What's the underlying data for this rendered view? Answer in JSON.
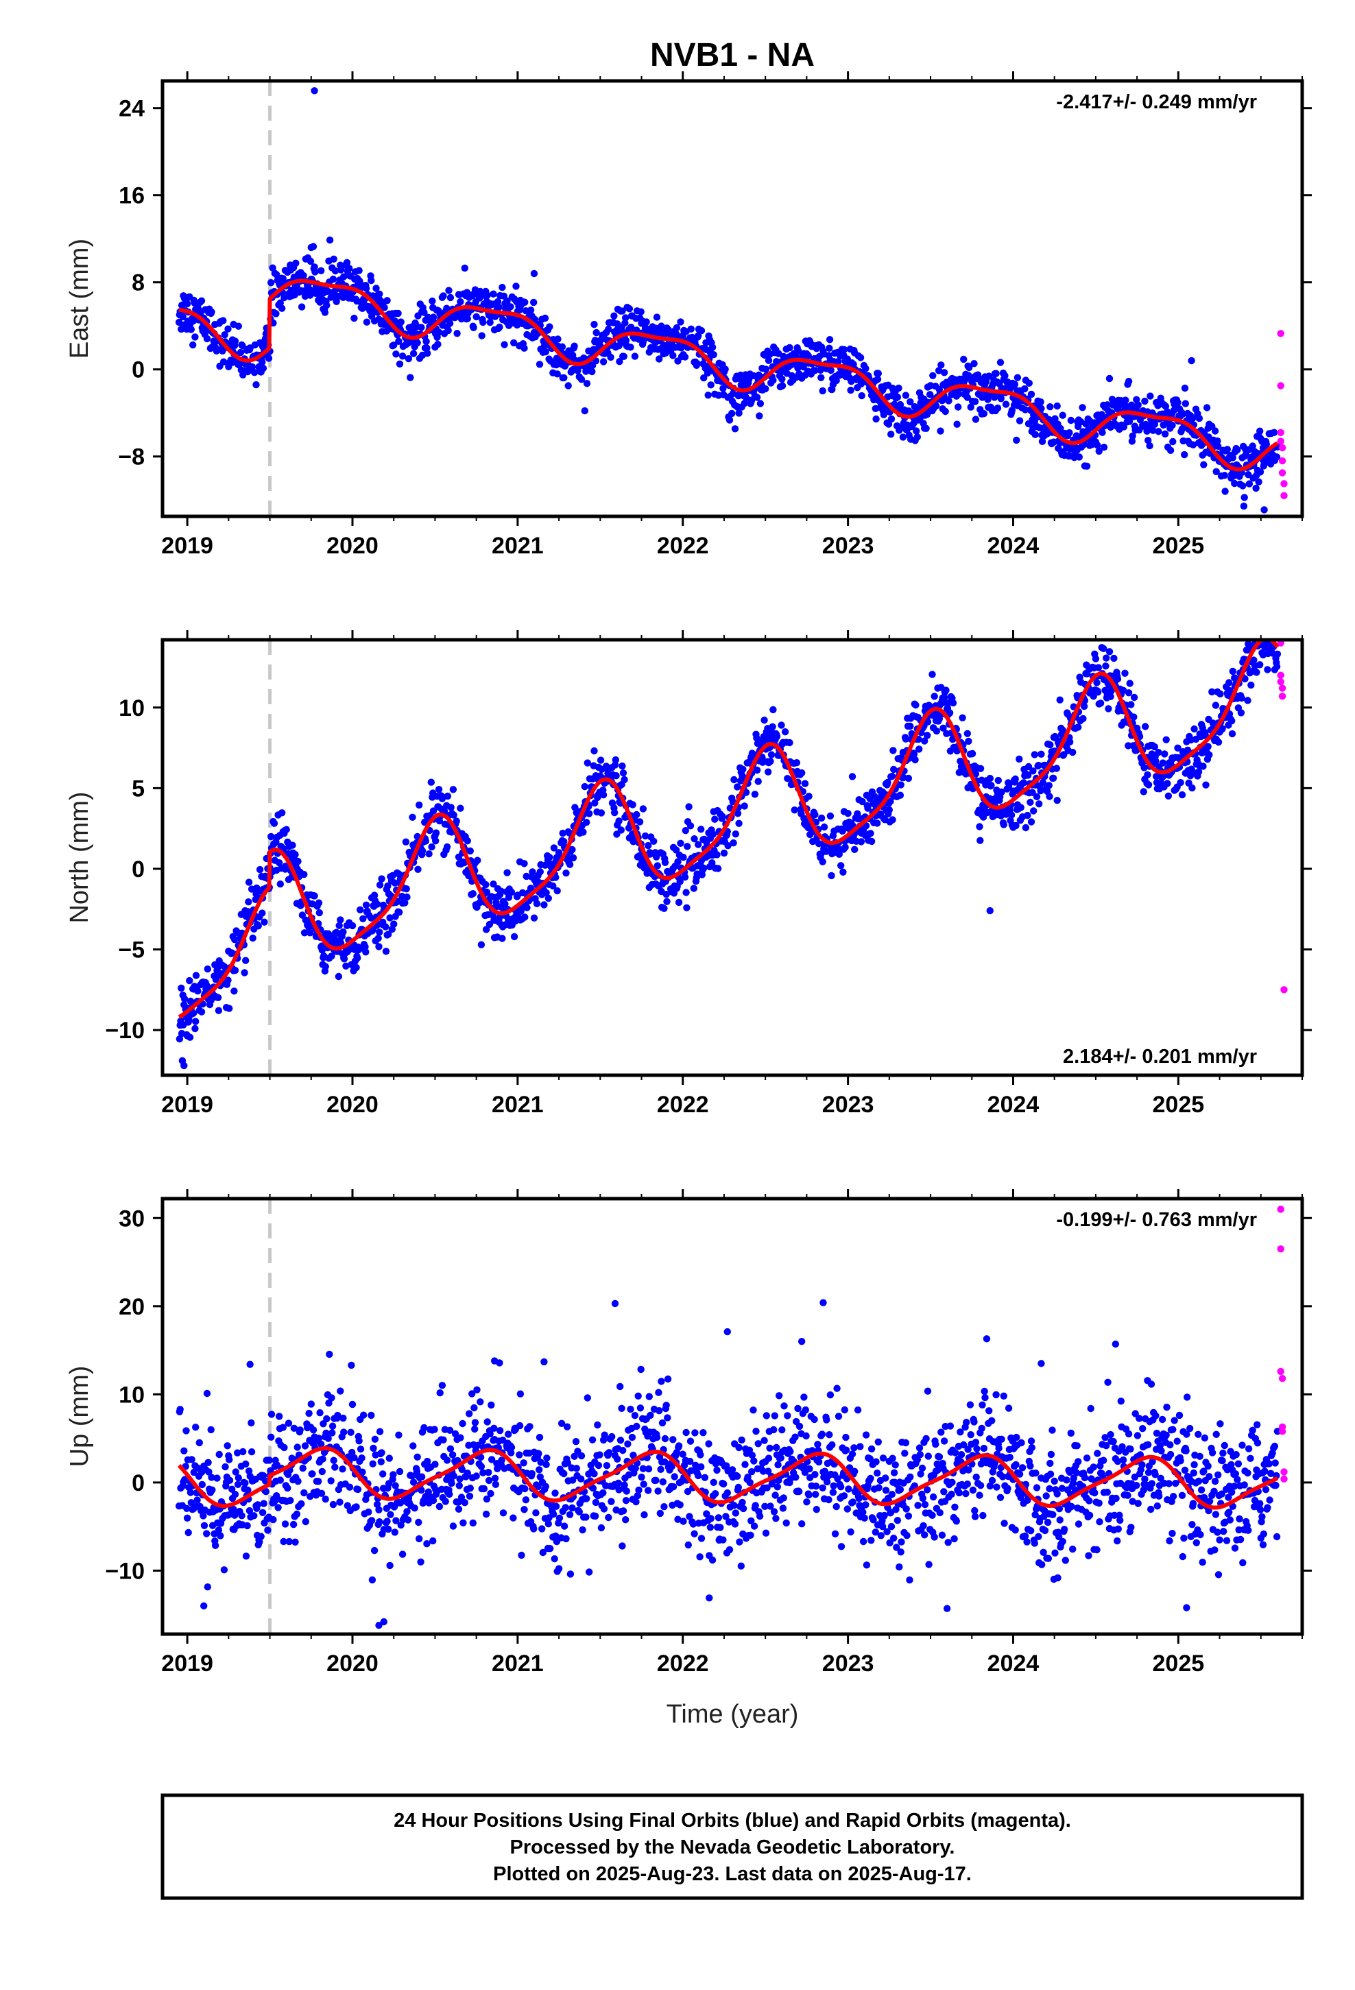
{
  "title": "NVB1 - NA",
  "xlabel": "Time (year)",
  "footer": {
    "line1": "24 Hour Positions Using Final Orbits (blue) and Rapid Orbits (magenta).",
    "line2": "Processed by the Nevada Geodetic Laboratory.",
    "line3": "Plotted on 2025-Aug-23. Last data on 2025-Aug-17."
  },
  "colors": {
    "final_orbits": "#0000ff",
    "rapid_orbits": "#ff00ff",
    "model": "#ff0000",
    "event_line": "#c8c8c8"
  },
  "chart_data": [
    {
      "type": "scatter",
      "panel": "east",
      "ylabel": "East (mm)",
      "rate_label": "-2.417+/- 0.249 mm/yr",
      "rate_position": "top-right",
      "xlim": [
        2018.85,
        2025.75
      ],
      "ylim": [
        -13.5,
        26.5
      ],
      "xticks": [
        2019,
        2020,
        2021,
        2022,
        2023,
        2024,
        2025
      ],
      "xtick_labels": [
        "2019",
        "2020",
        "2021",
        "2022",
        "2023",
        "2024",
        "2025"
      ],
      "yticks": [
        24,
        16,
        8,
        0,
        -8
      ],
      "ytick_labels": [
        "24",
        "16",
        "8",
        "0",
        "−8"
      ],
      "event_line_x": 2019.5,
      "rate": -2.417,
      "offset_at_event": 4.5,
      "trend_start": 4.2,
      "trend_start_year": 2018.95,
      "seasonal": [
        {
          "amplitude": 1.8,
          "period": 1.0,
          "peak": 2019.85
        },
        {
          "amplitude": 0.6,
          "period": 0.5,
          "peak": 2020.1
        }
      ],
      "final_orbits_noise": 1.1,
      "final_orbits_range": [
        2018.95,
        2025.6
      ],
      "rapid_orbits": [
        {
          "x": 2025.62,
          "y": 3.3
        },
        {
          "x": 2025.62,
          "y": -1.5
        },
        {
          "x": 2025.62,
          "y": -5.8
        },
        {
          "x": 2025.62,
          "y": -6.6
        },
        {
          "x": 2025.63,
          "y": -7.2
        },
        {
          "x": 2025.63,
          "y": -8.4
        },
        {
          "x": 2025.63,
          "y": -9.5
        },
        {
          "x": 2025.64,
          "y": -10.5
        },
        {
          "x": 2025.64,
          "y": -11.6
        }
      ],
      "outliers": [
        {
          "x": 2019.77,
          "y": 25.6
        },
        {
          "x": 2019.75,
          "y": 11.2
        },
        {
          "x": 2021.1,
          "y": 8.8
        },
        {
          "x": 2025.08,
          "y": 0.8
        },
        {
          "x": 2025.52,
          "y": -12.9
        }
      ]
    },
    {
      "type": "scatter",
      "panel": "north",
      "ylabel": "North (mm)",
      "rate_label": "2.184+/- 0.201 mm/yr",
      "rate_position": "bottom-right",
      "xlim": [
        2018.85,
        2025.75
      ],
      "ylim": [
        -12.8,
        14.2
      ],
      "xticks": [
        2019,
        2020,
        2021,
        2022,
        2023,
        2024,
        2025
      ],
      "xtick_labels": [
        "2019",
        "2020",
        "2021",
        "2022",
        "2023",
        "2024",
        "2025"
      ],
      "yticks": [
        10,
        5,
        0,
        -5,
        -10
      ],
      "ytick_labels": [
        "10",
        "5",
        "0",
        "−5",
        "−10"
      ],
      "event_line_x": 2019.5,
      "rate": 2.184,
      "offset_at_event": 2.2,
      "trend_start": -6.3,
      "trend_start_year": 2018.95,
      "seasonal": [
        {
          "amplitude": 3.3,
          "period": 1.0,
          "peak": 2019.5
        },
        {
          "amplitude": 0.8,
          "period": 0.5,
          "peak": 2019.55
        }
      ],
      "final_orbits_noise": 0.95,
      "final_orbits_range": [
        2018.95,
        2025.6
      ],
      "rapid_orbits": [
        {
          "x": 2025.62,
          "y": 14.0
        },
        {
          "x": 2025.62,
          "y": 12.0
        },
        {
          "x": 2025.62,
          "y": 11.6
        },
        {
          "x": 2025.63,
          "y": 11.2
        },
        {
          "x": 2025.63,
          "y": 10.7
        },
        {
          "x": 2025.64,
          "y": -7.5
        }
      ],
      "outliers": [
        {
          "x": 2018.97,
          "y": -11.9
        },
        {
          "x": 2018.98,
          "y": -12.2
        },
        {
          "x": 2019.5,
          "y": -0.5
        },
        {
          "x": 2023.86,
          "y": -2.6
        },
        {
          "x": 2025.55,
          "y": 13.7
        }
      ]
    },
    {
      "type": "scatter",
      "panel": "up",
      "ylabel": "Up (mm)",
      "rate_label": "-0.199+/- 0.763 mm/yr",
      "rate_position": "top-right",
      "xlim": [
        2018.85,
        2025.75
      ],
      "ylim": [
        -17.2,
        32.2
      ],
      "xticks": [
        2019,
        2020,
        2021,
        2022,
        2023,
        2024,
        2025
      ],
      "xtick_labels": [
        "2019",
        "2020",
        "2021",
        "2022",
        "2023",
        "2024",
        "2025"
      ],
      "yticks": [
        30,
        20,
        10,
        0,
        -10
      ],
      "ytick_labels": [
        "30",
        "20",
        "10",
        "0",
        "−10"
      ],
      "event_line_x": 2019.5,
      "rate": -0.199,
      "offset_at_event": 1.0,
      "trend_start": 0.2,
      "trend_start_year": 2018.95,
      "seasonal": [
        {
          "amplitude": 2.6,
          "period": 1.0,
          "peak": 2019.78
        },
        {
          "amplitude": 0.6,
          "period": 0.5,
          "peak": 2019.9
        }
      ],
      "final_orbits_noise": 3.6,
      "final_orbits_range": [
        2018.95,
        2025.6
      ],
      "rapid_orbits": [
        {
          "x": 2025.62,
          "y": 31.0
        },
        {
          "x": 2025.62,
          "y": 26.5
        },
        {
          "x": 2025.62,
          "y": 12.6
        },
        {
          "x": 2025.63,
          "y": 11.8
        },
        {
          "x": 2025.63,
          "y": 6.3
        },
        {
          "x": 2025.63,
          "y": 5.8
        },
        {
          "x": 2025.64,
          "y": 1.2
        },
        {
          "x": 2025.64,
          "y": 0.4
        }
      ],
      "outliers": [
        {
          "x": 2021.59,
          "y": 20.3
        },
        {
          "x": 2022.85,
          "y": 20.4
        },
        {
          "x": 2022.27,
          "y": 17.1
        },
        {
          "x": 2023.84,
          "y": 16.3
        },
        {
          "x": 2024.62,
          "y": 15.7
        },
        {
          "x": 2022.72,
          "y": 16.0
        },
        {
          "x": 2020.16,
          "y": -16.2
        },
        {
          "x": 2020.19,
          "y": -15.8
        },
        {
          "x": 2023.6,
          "y": -14.3
        },
        {
          "x": 2025.05,
          "y": -14.2
        },
        {
          "x": 2019.1,
          "y": -14.0
        },
        {
          "x": 2022.16,
          "y": -13.1
        },
        {
          "x": 2019.38,
          "y": 13.4
        },
        {
          "x": 2020.86,
          "y": 13.8
        },
        {
          "x": 2024.17,
          "y": 13.5
        }
      ]
    }
  ]
}
